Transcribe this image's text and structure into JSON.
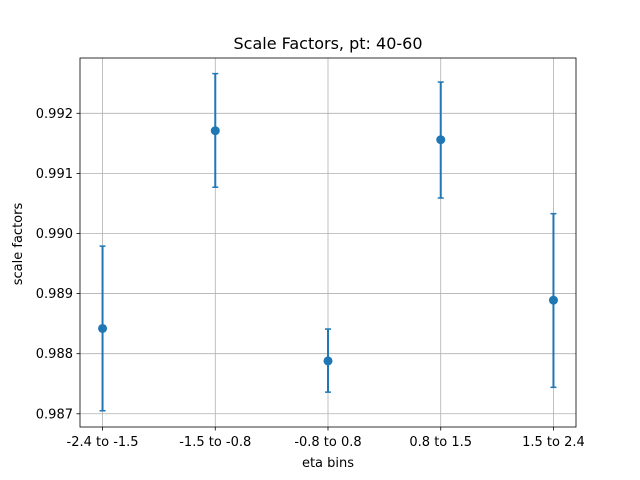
{
  "chart_data": {
    "type": "scatter",
    "title": "Scale Factors, pt: 40-60",
    "xlabel": "eta bins",
    "ylabel": "scale factors",
    "categories": [
      "-2.4 to -1.5",
      "-1.5 to -0.8",
      "-0.8 to 0.8",
      "0.8 to 1.5",
      "1.5 to 2.4"
    ],
    "series": [
      {
        "values": [
          0.98842,
          0.99171,
          0.98788,
          0.99156,
          0.98889
        ],
        "err_low": [
          0.98705,
          0.99077,
          0.98736,
          0.99059,
          0.98744
        ],
        "err_high": [
          0.98979,
          0.99266,
          0.98841,
          0.99252,
          0.99033
        ]
      }
    ],
    "yticks": [
      0.987,
      0.988,
      0.989,
      0.99,
      0.991,
      0.992
    ],
    "ytick_labels": [
      "0.987",
      "0.988",
      "0.989",
      "0.990",
      "0.991",
      "0.992"
    ],
    "ylim": [
      0.98678,
      0.99292
    ],
    "grid": true,
    "color": "#1f77b4"
  }
}
